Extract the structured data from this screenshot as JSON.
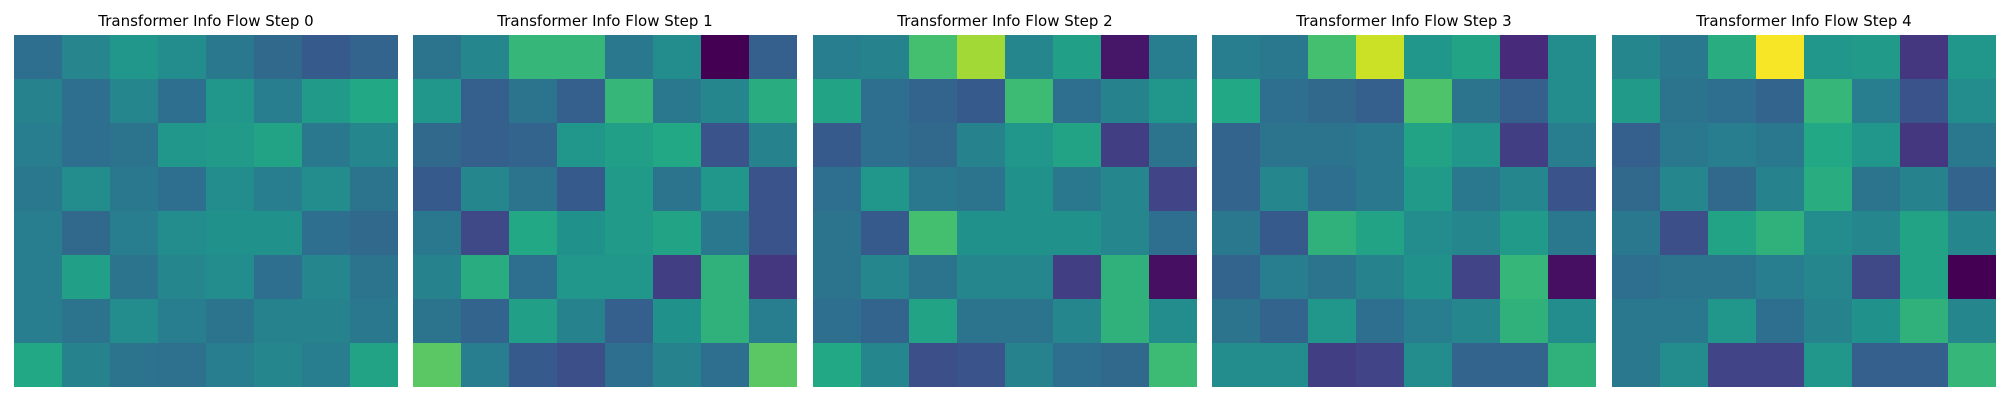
{
  "figure": {
    "background": "#ffffff",
    "colormap": "viridis"
  },
  "chart_data": [
    {
      "type": "heatmap",
      "title": "Transformer Info Flow Step 0",
      "axes": "off",
      "colormap": "viridis",
      "vmin": 0,
      "vmax": 1,
      "rows": 8,
      "cols": 8,
      "values": [
        [
          0.36,
          0.45,
          0.52,
          0.48,
          0.4,
          0.34,
          0.28,
          0.32
        ],
        [
          0.44,
          0.36,
          0.46,
          0.36,
          0.52,
          0.42,
          0.54,
          0.6
        ],
        [
          0.42,
          0.36,
          0.38,
          0.52,
          0.54,
          0.58,
          0.4,
          0.46
        ],
        [
          0.4,
          0.48,
          0.4,
          0.36,
          0.48,
          0.42,
          0.48,
          0.38
        ],
        [
          0.42,
          0.34,
          0.42,
          0.48,
          0.5,
          0.5,
          0.36,
          0.34
        ],
        [
          0.42,
          0.56,
          0.38,
          0.46,
          0.48,
          0.36,
          0.46,
          0.38
        ],
        [
          0.42,
          0.38,
          0.48,
          0.42,
          0.38,
          0.44,
          0.44,
          0.4
        ],
        [
          0.6,
          0.44,
          0.38,
          0.37,
          0.42,
          0.46,
          0.42,
          0.58
        ]
      ]
    },
    {
      "type": "heatmap",
      "title": "Transformer Info Flow Step 1",
      "axes": "off",
      "colormap": "viridis",
      "vmin": 0,
      "vmax": 1,
      "rows": 8,
      "cols": 8,
      "values": [
        [
          0.38,
          0.46,
          0.66,
          0.66,
          0.4,
          0.48,
          0.0,
          0.3
        ],
        [
          0.52,
          0.3,
          0.38,
          0.3,
          0.66,
          0.4,
          0.46,
          0.62
        ],
        [
          0.34,
          0.3,
          0.32,
          0.52,
          0.56,
          0.6,
          0.26,
          0.44
        ],
        [
          0.28,
          0.46,
          0.38,
          0.28,
          0.54,
          0.38,
          0.52,
          0.26
        ],
        [
          0.4,
          0.22,
          0.6,
          0.5,
          0.54,
          0.58,
          0.4,
          0.26
        ],
        [
          0.44,
          0.62,
          0.36,
          0.52,
          0.52,
          0.18,
          0.64,
          0.16
        ],
        [
          0.38,
          0.32,
          0.56,
          0.44,
          0.3,
          0.5,
          0.64,
          0.42
        ],
        [
          0.74,
          0.42,
          0.28,
          0.24,
          0.36,
          0.44,
          0.36,
          0.74
        ]
      ]
    },
    {
      "type": "heatmap",
      "title": "Transformer Info Flow Step 2",
      "axes": "off",
      "colormap": "viridis",
      "vmin": 0,
      "vmax": 1,
      "rows": 8,
      "cols": 8,
      "values": [
        [
          0.42,
          0.44,
          0.7,
          0.86,
          0.46,
          0.56,
          0.06,
          0.42
        ],
        [
          0.58,
          0.36,
          0.32,
          0.28,
          0.68,
          0.36,
          0.44,
          0.52
        ],
        [
          0.28,
          0.36,
          0.34,
          0.44,
          0.52,
          0.58,
          0.18,
          0.38
        ],
        [
          0.36,
          0.52,
          0.4,
          0.38,
          0.5,
          0.4,
          0.46,
          0.2
        ],
        [
          0.38,
          0.28,
          0.7,
          0.5,
          0.5,
          0.5,
          0.46,
          0.36
        ],
        [
          0.38,
          0.46,
          0.38,
          0.46,
          0.46,
          0.18,
          0.64,
          0.04
        ],
        [
          0.36,
          0.32,
          0.58,
          0.38,
          0.38,
          0.46,
          0.64,
          0.48
        ],
        [
          0.6,
          0.46,
          0.24,
          0.26,
          0.44,
          0.36,
          0.34,
          0.68
        ]
      ]
    },
    {
      "type": "heatmap",
      "title": "Transformer Info Flow Step 3",
      "axes": "off",
      "colormap": "viridis",
      "vmin": 0,
      "vmax": 1,
      "rows": 8,
      "cols": 8,
      "values": [
        [
          0.42,
          0.4,
          0.7,
          0.92,
          0.52,
          0.58,
          0.12,
          0.48
        ],
        [
          0.6,
          0.36,
          0.34,
          0.3,
          0.72,
          0.38,
          0.3,
          0.48
        ],
        [
          0.32,
          0.38,
          0.38,
          0.4,
          0.58,
          0.52,
          0.18,
          0.42
        ],
        [
          0.32,
          0.46,
          0.36,
          0.4,
          0.54,
          0.4,
          0.46,
          0.26
        ],
        [
          0.4,
          0.28,
          0.64,
          0.58,
          0.48,
          0.46,
          0.54,
          0.4
        ],
        [
          0.32,
          0.42,
          0.38,
          0.44,
          0.5,
          0.2,
          0.66,
          0.04
        ],
        [
          0.38,
          0.32,
          0.52,
          0.36,
          0.42,
          0.46,
          0.64,
          0.48
        ],
        [
          0.48,
          0.48,
          0.18,
          0.2,
          0.48,
          0.32,
          0.32,
          0.64
        ]
      ]
    },
    {
      "type": "heatmap",
      "title": "Transformer Info Flow Step 4",
      "axes": "off",
      "colormap": "viridis",
      "vmin": 0,
      "vmax": 1,
      "rows": 8,
      "cols": 8,
      "values": [
        [
          0.46,
          0.4,
          0.62,
          0.99,
          0.52,
          0.54,
          0.16,
          0.52
        ],
        [
          0.54,
          0.38,
          0.36,
          0.32,
          0.66,
          0.42,
          0.26,
          0.48
        ],
        [
          0.3,
          0.4,
          0.42,
          0.4,
          0.6,
          0.52,
          0.16,
          0.4
        ],
        [
          0.34,
          0.46,
          0.34,
          0.44,
          0.62,
          0.38,
          0.44,
          0.32
        ],
        [
          0.4,
          0.24,
          0.58,
          0.64,
          0.48,
          0.46,
          0.58,
          0.46
        ],
        [
          0.36,
          0.38,
          0.38,
          0.42,
          0.46,
          0.22,
          0.58,
          0.0
        ],
        [
          0.4,
          0.4,
          0.52,
          0.36,
          0.44,
          0.5,
          0.64,
          0.46
        ],
        [
          0.4,
          0.48,
          0.2,
          0.2,
          0.52,
          0.3,
          0.3,
          0.66
        ]
      ]
    }
  ]
}
